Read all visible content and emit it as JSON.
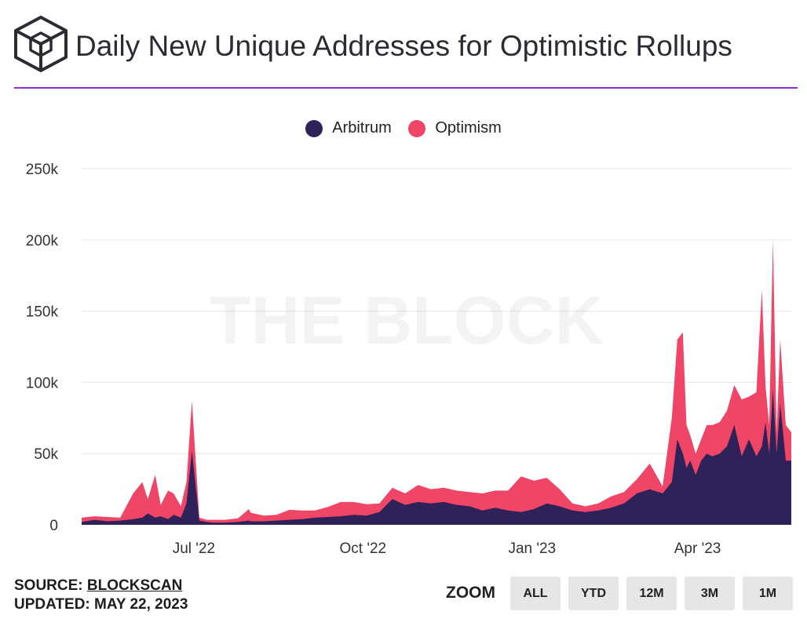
{
  "header": {
    "title": "Daily New Unique Addresses for Optimistic Rollups",
    "logo_icon": "the-block-cube-logo"
  },
  "watermark": "THE BLOCK",
  "footer": {
    "source_prefix": "SOURCE:",
    "source_name": "BLOCKSCAN",
    "updated": "UPDATED: MAY 22, 2023"
  },
  "zoom": {
    "label": "ZOOM",
    "buttons": [
      "ALL",
      "YTD",
      "12M",
      "3M",
      "1M"
    ]
  },
  "colors": {
    "accent_rule": "#9b2bd1",
    "arbitrum": "#2e2259",
    "optimism": "#ef4566",
    "gridline": "#e6e6e6"
  },
  "chart_data": {
    "type": "area",
    "stacked": true,
    "title": "Daily New Unique Addresses for Optimistic Rollups",
    "xlabel": "",
    "ylabel": "",
    "legend_position": "top-center",
    "grid": true,
    "ylim": [
      0,
      250000
    ],
    "y_ticks": [
      "0",
      "50k",
      "100k",
      "150k",
      "200k",
      "250k"
    ],
    "x_range": [
      "2022-05-01",
      "2023-05-22"
    ],
    "x_ticks": [
      {
        "date": "2022-07-01",
        "label": "Jul '22"
      },
      {
        "date": "2022-10-01",
        "label": "Oct '22"
      },
      {
        "date": "2023-01-01",
        "label": "Jan '23"
      },
      {
        "date": "2023-04-01",
        "label": "Apr '23"
      }
    ],
    "x": [
      "2022-05-01",
      "2022-05-08",
      "2022-05-15",
      "2022-05-22",
      "2022-05-29",
      "2022-06-03",
      "2022-06-06",
      "2022-06-10",
      "2022-06-13",
      "2022-06-17",
      "2022-06-20",
      "2022-06-24",
      "2022-06-27",
      "2022-06-30",
      "2022-07-04",
      "2022-07-08",
      "2022-07-11",
      "2022-07-18",
      "2022-07-25",
      "2022-07-31",
      "2022-08-01",
      "2022-08-08",
      "2022-08-15",
      "2022-08-22",
      "2022-08-29",
      "2022-09-05",
      "2022-09-12",
      "2022-09-19",
      "2022-09-26",
      "2022-10-03",
      "2022-10-10",
      "2022-10-17",
      "2022-10-24",
      "2022-10-31",
      "2022-11-07",
      "2022-11-14",
      "2022-11-21",
      "2022-11-28",
      "2022-12-05",
      "2022-12-12",
      "2022-12-19",
      "2022-12-26",
      "2023-01-02",
      "2023-01-09",
      "2023-01-16",
      "2023-01-23",
      "2023-01-30",
      "2023-02-06",
      "2023-02-13",
      "2023-02-20",
      "2023-02-27",
      "2023-03-06",
      "2023-03-13",
      "2023-03-18",
      "2023-03-21",
      "2023-03-24",
      "2023-03-26",
      "2023-03-28",
      "2023-03-31",
      "2023-04-03",
      "2023-04-06",
      "2023-04-09",
      "2023-04-13",
      "2023-04-17",
      "2023-04-21",
      "2023-04-25",
      "2023-04-29",
      "2023-05-03",
      "2023-05-06",
      "2023-05-08",
      "2023-05-10",
      "2023-05-12",
      "2023-05-14",
      "2023-05-16",
      "2023-05-19",
      "2023-05-22"
    ],
    "series": [
      {
        "name": "Arbitrum",
        "values": [
          2000,
          3500,
          2500,
          3000,
          4000,
          5000,
          8000,
          5000,
          6000,
          4000,
          7000,
          5000,
          15000,
          52000,
          3000,
          2000,
          1500,
          1500,
          2000,
          3000,
          2500,
          2500,
          3000,
          3500,
          4000,
          5000,
          5500,
          6000,
          7000,
          6500,
          9000,
          18000,
          14000,
          16000,
          15000,
          16000,
          14000,
          13000,
          10000,
          12000,
          10000,
          9000,
          11000,
          15000,
          13000,
          10000,
          9000,
          10000,
          12000,
          15000,
          22000,
          25000,
          22000,
          30000,
          60000,
          50000,
          40000,
          45000,
          35000,
          45000,
          50000,
          48000,
          50000,
          55000,
          70000,
          48000,
          60000,
          48000,
          55000,
          72000,
          50000,
          95000,
          50000,
          85000,
          45000,
          45000
        ]
      },
      {
        "name": "Optimism",
        "values": [
          3000,
          2500,
          3000,
          2000,
          18000,
          25000,
          10000,
          30000,
          8000,
          20000,
          15000,
          8000,
          15000,
          35000,
          2000,
          1500,
          2000,
          2000,
          2500,
          8000,
          6000,
          4000,
          4000,
          7000,
          6000,
          5000,
          7000,
          10000,
          9000,
          8000,
          6000,
          8000,
          8000,
          12000,
          10000,
          10000,
          10000,
          10000,
          12000,
          12000,
          14000,
          25000,
          20000,
          18000,
          12000,
          5000,
          4000,
          5000,
          8000,
          8000,
          10000,
          18000,
          5000,
          45000,
          70000,
          85000,
          30000,
          18000,
          15000,
          15000,
          20000,
          22000,
          22000,
          25000,
          28000,
          40000,
          30000,
          45000,
          110000,
          25000,
          20000,
          105000,
          15000,
          45000,
          25000,
          20000
        ]
      }
    ]
  }
}
